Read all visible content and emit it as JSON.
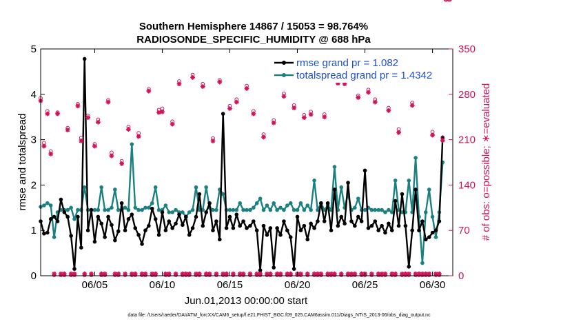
{
  "chart_data": {
    "type": "line",
    "title": "Southern Hemisphere 14867 / 15053 = 98.764%",
    "subtitle": "RADIOSONDE_SPECIFIC_HUMIDITY @ 688 hPa",
    "xlabel": "Jun.01,2013 00:00:00 start",
    "ylabel": "rmse and totalspread",
    "y2label": "# of obs: o=possible; ∗=evaluated",
    "footnote": "data file: /Users/raeder/DAI/ATM_forcXX/CAM6_setup/f.e21.FHIST_BGC.f09_025.CAM6assim.011/Diags_NTrS_2013-06/obs_diag_output.nc",
    "x_tick_labels": [
      "06/05",
      "06/10",
      "06/15",
      "06/20",
      "06/25",
      "06/30"
    ],
    "x_tick_days": [
      5,
      10,
      15,
      20,
      25,
      30
    ],
    "xlim": [
      1,
      31.5
    ],
    "ylim": [
      0,
      5
    ],
    "y_ticks": [
      "0",
      "1",
      "2",
      "3",
      "4",
      "5"
    ],
    "y2lim": [
      0,
      350
    ],
    "y2_ticks": [
      "0",
      "70",
      "140",
      "210",
      "280",
      "350"
    ],
    "x_days": [
      1.0,
      1.25,
      1.5,
      1.75,
      2.0,
      2.25,
      2.5,
      2.75,
      3.0,
      3.25,
      3.5,
      3.75,
      4.0,
      4.25,
      4.5,
      4.75,
      5.0,
      5.25,
      5.5,
      5.75,
      6.0,
      6.25,
      6.5,
      6.75,
      7.0,
      7.25,
      7.5,
      7.75,
      8.0,
      8.25,
      8.5,
      8.75,
      9.0,
      9.25,
      9.5,
      9.75,
      10.0,
      10.25,
      10.5,
      10.75,
      11.0,
      11.25,
      11.5,
      11.75,
      12.0,
      12.25,
      12.5,
      12.75,
      13.0,
      13.25,
      13.5,
      13.75,
      14.0,
      14.25,
      14.5,
      14.75,
      15.0,
      15.25,
      15.5,
      15.75,
      16.0,
      16.25,
      16.5,
      16.75,
      17.0,
      17.25,
      17.5,
      17.75,
      18.0,
      18.25,
      18.5,
      18.75,
      19.0,
      19.25,
      19.5,
      19.75,
      20.0,
      20.25,
      20.5,
      20.75,
      21.0,
      21.25,
      21.5,
      21.75,
      22.0,
      22.25,
      22.5,
      22.75,
      23.0,
      23.25,
      23.5,
      23.75,
      24.0,
      24.25,
      24.5,
      24.75,
      25.0,
      25.25,
      25.5,
      25.75,
      26.0,
      26.25,
      26.5,
      26.75,
      27.0,
      27.25,
      27.5,
      27.75,
      28.0,
      28.25,
      28.5,
      28.75,
      29.0,
      29.25,
      29.5,
      29.75,
      30.0,
      30.25,
      30.5,
      30.75,
      31.0,
      31.25
    ],
    "series": [
      {
        "name": "rmse grand pr = 1.082",
        "color": "#000000",
        "values": [
          1.2,
          0.93,
          0.95,
          1.25,
          1.3,
          1.2,
          1.68,
          1.4,
          1.3,
          0.88,
          0.15,
          1.3,
          0.62,
          4.78,
          1.0,
          1.45,
          0.75,
          1.3,
          1.15,
          0.85,
          1.3,
          1.12,
          0.78,
          0.98,
          1.6,
          1.0,
          1.25,
          1.35,
          1.05,
          0.9,
          0.7,
          1.0,
          1.1,
          1.48,
          1.25,
          0.9,
          1.4,
          1.0,
          1.2,
          1.05,
          1.15,
          1.35,
          1.12,
          1.3,
          0.9,
          1.05,
          1.3,
          1.8,
          1.1,
          1.4,
          1.6,
          1.0,
          1.2,
          0.8,
          3.57,
          1.05,
          1.3,
          1.05,
          1.35,
          1.1,
          1.2,
          1.05,
          1.1,
          1.2,
          1.0,
          0.12,
          1.1,
          0.9,
          1.05,
          0.18,
          1.05,
          0.9,
          1.2,
          1.0,
          0.85,
          0.15,
          1.3,
          1.0,
          1.1,
          0.8,
          1.15,
          1.05,
          1.2,
          1.6,
          1.2,
          1.6,
          1.0,
          1.9,
          1.1,
          1.3,
          1.15,
          2.05,
          1.2,
          1.1,
          1.3,
          1.2,
          2.32,
          1.05,
          1.1,
          1.2,
          1.0,
          1.1,
          0.95,
          1.15,
          1.0,
          1.65,
          1.1,
          1.8,
          1.1,
          0.2,
          1.0,
          1.9,
          1.0,
          1.2,
          0.8,
          0.85,
          0.95,
          1.0,
          1.2,
          3.05
        ]
      },
      {
        "name": "totalspread grand pr = 1.4342",
        "color": "#1a8080",
        "values": [
          1.52,
          1.55,
          1.6,
          1.55,
          0.85,
          1.4,
          1.45,
          1.45,
          1.45,
          1.5,
          1.25,
          1.45,
          1.45,
          1.95,
          1.45,
          1.45,
          1.45,
          1.45,
          1.95,
          1.45,
          1.45,
          1.5,
          1.9,
          1.45,
          1.45,
          1.5,
          1.45,
          2.9,
          1.5,
          1.45,
          1.45,
          1.5,
          1.5,
          1.6,
          1.95,
          1.45,
          1.45,
          1.55,
          1.4,
          1.4,
          1.45,
          1.4,
          1.4,
          1.3,
          1.4,
          1.45,
          1.95,
          1.45,
          1.45,
          1.95,
          1.5,
          1.45,
          1.45,
          1.9,
          1.8,
          1.45,
          1.45,
          1.45,
          1.45,
          1.6,
          1.45,
          1.45,
          1.45,
          1.5,
          1.6,
          1.7,
          1.45,
          1.55,
          1.45,
          1.6,
          1.45,
          1.5,
          1.45,
          1.55,
          1.6,
          1.45,
          1.45,
          1.6,
          1.45,
          1.55,
          1.45,
          2.1,
          1.45,
          1.6,
          1.45,
          1.55,
          1.45,
          2.4,
          1.45,
          1.95,
          1.5,
          1.8,
          1.45,
          1.5,
          1.7,
          1.45,
          1.45,
          1.5,
          1.45,
          1.45,
          1.45,
          1.45,
          1.4,
          1.45,
          1.4,
          2.1,
          1.45,
          1.4,
          1.4,
          2.1,
          1.4,
          2.6,
          1.3,
          0.28,
          1.4,
          1.9,
          1.3,
          0.85,
          1.4,
          2.5
        ]
      }
    ],
    "obs_possible": [
      274,
      205,
      254,
      192,
      1,
      252,
      1,
      1,
      228,
      1,
      1,
      265,
      213,
      1,
      247,
      1,
      203,
      241,
      1,
      1,
      271,
      190,
      1,
      1,
      177,
      1,
      230,
      1,
      1,
      220,
      1,
      1,
      288,
      1,
      1,
      256,
      258,
      1,
      1,
      238,
      1,
      300,
      1,
      1,
      1,
      310,
      1,
      1,
      296,
      1,
      1,
      212,
      1,
      302,
      1,
      1,
      262,
      1,
      272,
      1,
      1,
      293,
      1,
      254,
      1,
      1,
      218,
      1,
      1,
      240,
      1,
      1,
      281,
      1,
      1,
      263,
      1,
      1,
      248,
      1,
      253,
      1,
      1,
      1,
      249,
      1,
      1,
      1,
      301,
      1,
      300,
      1,
      1,
      1,
      278,
      1,
      1,
      287,
      1,
      272,
      1,
      1,
      1,
      259,
      1,
      1,
      226,
      1,
      1,
      1,
      267,
      1,
      1,
      1,
      1,
      1,
      222,
      1,
      1,
      213
    ],
    "obs_evaluated": [
      270,
      200,
      250,
      188,
      3,
      250,
      3,
      3,
      225,
      3,
      3,
      262,
      208,
      3,
      244,
      3,
      200,
      237,
      3,
      3,
      268,
      185,
      3,
      3,
      173,
      3,
      226,
      3,
      3,
      215,
      3,
      3,
      285,
      3,
      3,
      252,
      253,
      3,
      3,
      234,
      3,
      296,
      3,
      3,
      3,
      306,
      3,
      3,
      292,
      3,
      3,
      208,
      3,
      299,
      3,
      3,
      258,
      3,
      268,
      3,
      3,
      289,
      3,
      250,
      3,
      3,
      214,
      3,
      3,
      236,
      3,
      3,
      277,
      3,
      3,
      259,
      3,
      3,
      244,
      3,
      249,
      3,
      3,
      3,
      245,
      3,
      3,
      3,
      297,
      3,
      296,
      3,
      3,
      3,
      275,
      3,
      3,
      283,
      3,
      268,
      3,
      3,
      3,
      255,
      3,
      3,
      221,
      3,
      3,
      3,
      263,
      3,
      3,
      3,
      3,
      3,
      217,
      3,
      3,
      209
    ],
    "obs_color": "#d0135a"
  }
}
